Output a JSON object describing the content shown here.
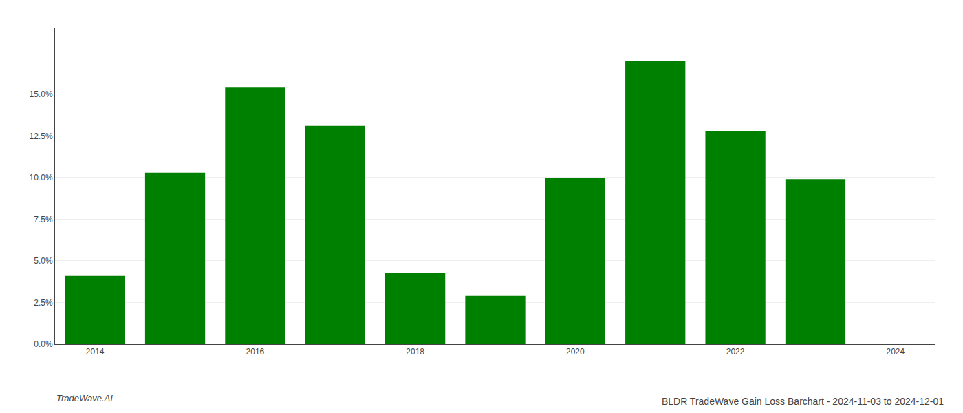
{
  "chart_data": {
    "type": "bar",
    "title": "BLDR TradeWave Gain Loss Barchart - 2024-11-03 to 2024-12-01",
    "categories": [
      "2014",
      null,
      "2016",
      null,
      "2018",
      null,
      "2020",
      null,
      "2022",
      null,
      "2024"
    ],
    "values": [
      0.041,
      0.103,
      0.154,
      0.131,
      0.043,
      0.029,
      0.1,
      0.17,
      0.128,
      0.099,
      0.0
    ],
    "color": "#008000",
    "ylim": [
      0,
      0.19
    ],
    "yticks": [
      {
        "value": 0.0,
        "label": "0.0%"
      },
      {
        "value": 0.025,
        "label": "2.5%"
      },
      {
        "value": 0.05,
        "label": "5.0%"
      },
      {
        "value": 0.075,
        "label": "7.5%"
      },
      {
        "value": 0.1,
        "label": "10.0%"
      },
      {
        "value": 0.125,
        "label": "12.5%"
      },
      {
        "value": 0.15,
        "label": "15.0%"
      }
    ],
    "grid": true,
    "annotations": [
      "TradeWave.AI"
    ]
  }
}
